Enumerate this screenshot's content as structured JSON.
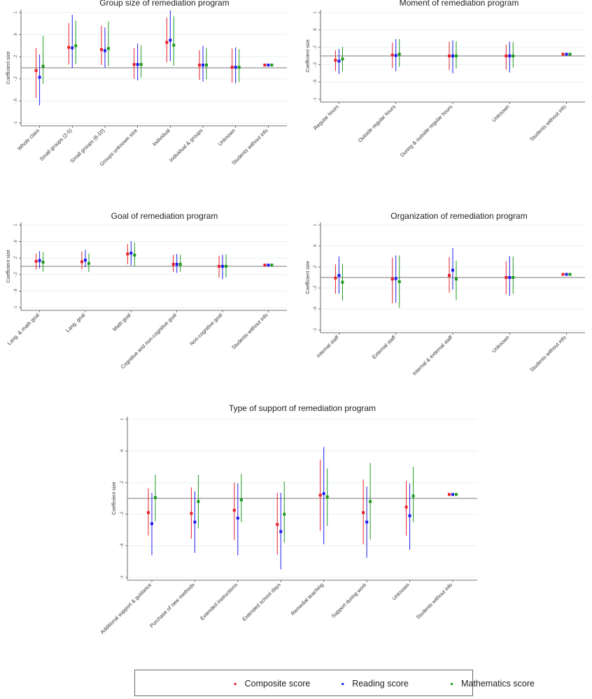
{
  "colors": {
    "composite": "#e8202a",
    "reading": "#1c1cf0",
    "mathematics": "#1e9a1e",
    "zero_line": "#777777",
    "grid": "#dff0e9"
  },
  "legend": {
    "items": [
      {
        "key": "composite",
        "label": "Composite score"
      },
      {
        "key": "reading",
        "label": "Reading score"
      },
      {
        "key": "mathematics",
        "label": "Mathematics score"
      }
    ]
  },
  "chart_data": [
    {
      "type": "scatter",
      "title": "Group size of remediation program",
      "ylabel": "Coefficient size",
      "ylim": [
        -1,
        1
      ],
      "yticks": [
        1,
        0.6,
        0.2,
        -0.2,
        -0.6,
        -1
      ],
      "ytick_labels": [
        "1",
        ".6",
        ".2",
        "-.2",
        "-.6",
        "-1"
      ],
      "categories": [
        "Whole class",
        "Small groups (2-5)",
        "Small groups (6-10)",
        "Groups unknown size",
        "Individual",
        "Individual & groups",
        "Unknown",
        "Students without info"
      ],
      "series": [
        {
          "name": "Composite score",
          "key": "composite",
          "estimates": [
            -0.05,
            0.37,
            0.33,
            0.06,
            0.46,
            0.05,
            0.01,
            0.05
          ],
          "lower": [
            -0.55,
            0.06,
            0.05,
            -0.2,
            0.1,
            -0.22,
            -0.27,
            0.05
          ],
          "upper": [
            0.36,
            0.81,
            0.76,
            0.36,
            0.91,
            0.32,
            0.35,
            0.05
          ]
        },
        {
          "name": "Reading score",
          "key": "reading",
          "estimates": [
            -0.17,
            0.36,
            0.31,
            0.06,
            0.5,
            0.05,
            0.01,
            0.05
          ],
          "lower": [
            -0.68,
            0.0,
            0.0,
            -0.23,
            0.12,
            -0.25,
            -0.28,
            0.05
          ],
          "upper": [
            0.24,
            0.96,
            0.73,
            0.44,
            1.04,
            0.4,
            0.37,
            0.05
          ]
        },
        {
          "name": "Mathematics score",
          "key": "mathematics",
          "estimates": [
            0.03,
            0.4,
            0.35,
            0.06,
            0.41,
            0.05,
            0.01,
            0.05
          ],
          "lower": [
            -0.29,
            0.07,
            0.03,
            -0.18,
            0.04,
            -0.21,
            -0.26,
            0.05
          ],
          "upper": [
            0.58,
            0.85,
            0.84,
            0.41,
            0.93,
            0.36,
            0.34,
            0.05
          ]
        }
      ]
    },
    {
      "type": "scatter",
      "title": "Moment of remediation program",
      "ylabel": "Coefficient size",
      "ylim": [
        -1,
        1
      ],
      "yticks": [
        1,
        0.6,
        0.2,
        -0.2,
        -0.6,
        -1
      ],
      "ytick_labels": [
        "1",
        ".6",
        ".2",
        "-.2",
        "-.6",
        "-1"
      ],
      "categories": [
        "Regular hours",
        "Outside regular hours",
        "During & outside regular hours",
        "Unknown",
        "Students without info"
      ],
      "series": [
        {
          "name": "Composite score",
          "key": "composite",
          "estimates": [
            -0.1,
            0.02,
            0.0,
            0.0,
            0.04
          ],
          "lower": [
            -0.35,
            -0.28,
            -0.33,
            -0.32,
            0.04
          ],
          "upper": [
            0.13,
            0.31,
            0.33,
            0.26,
            0.04
          ]
        },
        {
          "name": "Reading score",
          "key": "reading",
          "estimates": [
            -0.12,
            0.01,
            0.0,
            0.0,
            0.04
          ],
          "lower": [
            -0.42,
            -0.35,
            -0.4,
            -0.38,
            0.04
          ],
          "upper": [
            0.16,
            0.39,
            0.36,
            0.33,
            0.04
          ]
        },
        {
          "name": "Mathematics score",
          "key": "mathematics",
          "estimates": [
            -0.07,
            0.04,
            0.0,
            0.0,
            0.04
          ],
          "lower": [
            -0.36,
            -0.25,
            -0.29,
            -0.27,
            0.04
          ],
          "upper": [
            0.21,
            0.39,
            0.34,
            0.32,
            0.04
          ]
        }
      ]
    },
    {
      "type": "scatter",
      "title": "Goal of remediation program",
      "ylabel": "Coefficient size",
      "ylim": [
        -1,
        1
      ],
      "yticks": [
        1,
        0.6,
        0.2,
        -0.2,
        -0.6,
        -1
      ],
      "ytick_labels": [
        "1",
        ".6",
        ".2",
        "-.2",
        "-.6",
        "-1"
      ],
      "categories": [
        "Lang. & math goal",
        "Lang. goal",
        "Math goal",
        "Cognitive and non-cognitive goal",
        "Non-cognitive goal",
        "Students without info"
      ],
      "series": [
        {
          "name": "Composite score",
          "key": "composite",
          "estimates": [
            0.12,
            0.11,
            0.3,
            0.05,
            0.0,
            0.03
          ],
          "lower": [
            -0.08,
            -0.07,
            0.05,
            -0.14,
            -0.27,
            0.03
          ],
          "upper": [
            0.31,
            0.36,
            0.54,
            0.28,
            0.25,
            0.03
          ]
        },
        {
          "name": "Reading score",
          "key": "reading",
          "estimates": [
            0.14,
            0.15,
            0.32,
            0.05,
            0.0,
            0.03
          ],
          "lower": [
            -0.05,
            -0.02,
            0.02,
            -0.16,
            -0.31,
            0.03
          ],
          "upper": [
            0.37,
            0.4,
            0.61,
            0.3,
            0.28,
            0.03
          ]
        },
        {
          "name": "Mathematics score",
          "key": "mathematics",
          "estimates": [
            0.1,
            0.07,
            0.27,
            0.05,
            0.0,
            0.03
          ],
          "lower": [
            -0.13,
            -0.14,
            0.01,
            -0.13,
            -0.27,
            0.03
          ],
          "upper": [
            0.35,
            0.31,
            0.58,
            0.28,
            0.29,
            0.03
          ]
        }
      ]
    },
    {
      "type": "scatter",
      "title": "Organization of remediation program",
      "ylabel": "Coefficient size",
      "ylim": [
        -1,
        1
      ],
      "yticks": [
        1,
        0.6,
        0.2,
        -0.2,
        -0.6,
        -1
      ],
      "ytick_labels": [
        "1",
        ".6",
        ".2",
        "-.2",
        "-.6",
        "-1"
      ],
      "categories": [
        "Internal staff",
        "External staff",
        "Internal & external staff",
        "Unknown",
        "Students without info"
      ],
      "series": [
        {
          "name": "Composite score",
          "key": "composite",
          "estimates": [
            -0.01,
            -0.03,
            0.04,
            0.0,
            0.06
          ],
          "lower": [
            -0.31,
            -0.49,
            -0.29,
            -0.32,
            0.06
          ],
          "upper": [
            0.25,
            0.38,
            0.39,
            0.31,
            0.06
          ]
        },
        {
          "name": "Reading score",
          "key": "reading",
          "estimates": [
            0.04,
            -0.02,
            0.14,
            0.0,
            0.06
          ],
          "lower": [
            -0.31,
            -0.48,
            -0.23,
            -0.35,
            0.06
          ],
          "upper": [
            0.4,
            0.42,
            0.56,
            0.41,
            0.06
          ]
        },
        {
          "name": "Mathematics score",
          "key": "mathematics",
          "estimates": [
            -0.09,
            -0.08,
            -0.03,
            0.0,
            0.06
          ],
          "lower": [
            -0.44,
            -0.58,
            -0.43,
            -0.31,
            0.06
          ],
          "upper": [
            0.26,
            0.42,
            0.32,
            0.4,
            0.06
          ]
        }
      ]
    },
    {
      "type": "scatter",
      "title": "Type of support of remediation program",
      "ylabel": "Coefficient size",
      "ylim": [
        -1,
        1
      ],
      "yticks": [
        1,
        0.6,
        0.2,
        -0.2,
        -0.6,
        -1
      ],
      "ytick_labels": [
        "1",
        ".6",
        ".2",
        "-.2",
        "-.6",
        "-1"
      ],
      "categories": [
        "Additional support & guidance",
        "Purchase of new methods",
        "Extended instructions",
        "Extended school days",
        "Remedial teaching",
        "Support during work",
        "Unknown",
        "Students without info"
      ],
      "series": [
        {
          "name": "Composite score",
          "key": "composite",
          "estimates": [
            -0.18,
            -0.19,
            -0.15,
            -0.33,
            0.04,
            -0.18,
            -0.11,
            0.05
          ],
          "lower": [
            -0.47,
            -0.51,
            -0.53,
            -0.71,
            -0.41,
            -0.58,
            -0.47,
            0.05
          ],
          "upper": [
            0.13,
            0.14,
            0.2,
            0.07,
            0.49,
            0.24,
            0.22,
            0.05
          ]
        },
        {
          "name": "Reading score",
          "key": "reading",
          "estimates": [
            -0.32,
            -0.3,
            -0.25,
            -0.42,
            0.06,
            -0.3,
            -0.22,
            0.05
          ],
          "lower": [
            -0.72,
            -0.69,
            -0.72,
            -0.9,
            -0.58,
            -0.75,
            -0.65,
            0.05
          ],
          "upper": [
            0.07,
            0.09,
            0.19,
            0.07,
            0.65,
            0.15,
            0.19,
            0.05
          ]
        },
        {
          "name": "Mathematics score",
          "key": "mathematics",
          "estimates": [
            0.01,
            -0.04,
            -0.02,
            -0.2,
            0.02,
            -0.04,
            0.03,
            0.05
          ],
          "lower": [
            -0.29,
            -0.38,
            -0.3,
            -0.56,
            -0.35,
            -0.52,
            -0.3,
            0.05
          ],
          "upper": [
            0.3,
            0.3,
            0.31,
            0.21,
            0.38,
            0.45,
            0.4,
            0.05
          ]
        }
      ]
    }
  ]
}
